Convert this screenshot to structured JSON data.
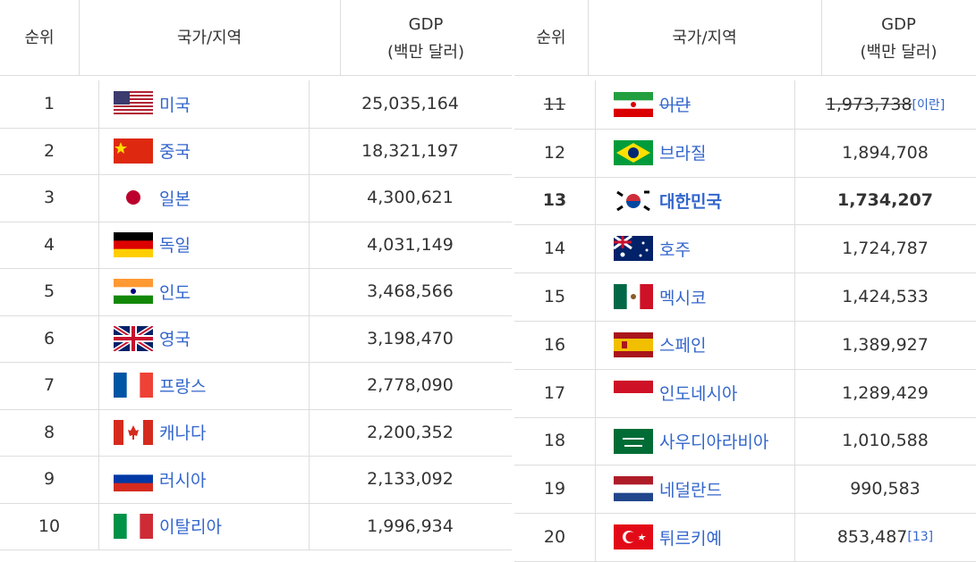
{
  "left": {
    "header": {
      "rank": "순위",
      "country": "국가/지역",
      "gdp": "GDP",
      "gdp_unit": "(백만 달러)"
    },
    "rows": [
      {
        "rank": "1",
        "country": "미국",
        "gdp": "25,035,164"
      },
      {
        "rank": "2",
        "country": "중국",
        "gdp": "18,321,197"
      },
      {
        "rank": "3",
        "country": "일본",
        "gdp": "4,300,621"
      },
      {
        "rank": "4",
        "country": "독일",
        "gdp": "4,031,149"
      },
      {
        "rank": "5",
        "country": "인도",
        "gdp": "3,468,566"
      },
      {
        "rank": "6",
        "country": "영국",
        "gdp": "3,198,470"
      },
      {
        "rank": "7",
        "country": "프랑스",
        "gdp": "2,778,090"
      },
      {
        "rank": "8",
        "country": "캐나다",
        "gdp": "2,200,352"
      },
      {
        "rank": "9",
        "country": "러시아",
        "gdp": "2,133,092"
      },
      {
        "rank": "10",
        "country": "이탈리아",
        "gdp": "1,996,934"
      }
    ]
  },
  "right": {
    "header": {
      "rank": "순위",
      "country": "국가/지역",
      "gdp": "GDP",
      "gdp_unit": "(백만 달러)"
    },
    "rows": [
      {
        "rank": "11",
        "country": "이란",
        "gdp": "1,973,738",
        "note": "[이란]"
      },
      {
        "rank": "12",
        "country": "브라질",
        "gdp": "1,894,708"
      },
      {
        "rank": "13",
        "country": "대한민국",
        "gdp": "1,734,207"
      },
      {
        "rank": "14",
        "country": "호주",
        "gdp": "1,724,787"
      },
      {
        "rank": "15",
        "country": "멕시코",
        "gdp": "1,424,533"
      },
      {
        "rank": "16",
        "country": "스페인",
        "gdp": "1,389,927"
      },
      {
        "rank": "17",
        "country": "인도네시아",
        "gdp": "1,289,429"
      },
      {
        "rank": "18",
        "country": "사우디아라비아",
        "gdp": "1,010,588"
      },
      {
        "rank": "19",
        "country": "네덜란드",
        "gdp": "990,583"
      },
      {
        "rank": "20",
        "country": "튀르키예",
        "gdp": "853,487",
        "note": "[13]"
      }
    ]
  }
}
